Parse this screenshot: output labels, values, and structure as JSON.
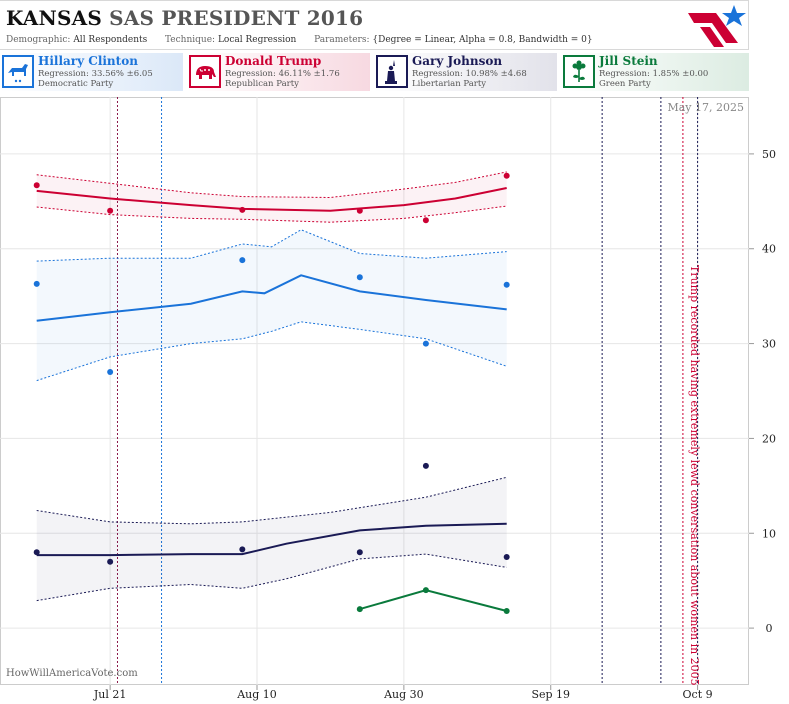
{
  "header": {
    "state": "KANSAS",
    "title_rest": "SAS PRESIDENT 2016",
    "demographic_label": "Demographic:",
    "demographic_value": "All Respondents",
    "technique_label": "Technique:",
    "technique_value": "Local Regression",
    "parameters_label": "Parameters:",
    "parameters_value": "{Degree = Linear, Alpha = 0.8, Bandwidth = 0}"
  },
  "candidates": [
    {
      "name": "Hillary Clinton",
      "regression": "Regression: 33.56% ±6.05",
      "party": "Democratic Party",
      "color": "#1a73d9",
      "icon": "donkey-icon"
    },
    {
      "name": "Donald Trump",
      "regression": "Regression: 46.11% ±1.76",
      "party": "Republican Party",
      "color": "#cc0033",
      "icon": "elephant-icon"
    },
    {
      "name": "Gary Johnson",
      "regression": "Regression: 10.98% ±4.68",
      "party": "Libertarian Party",
      "color": "#1a1a55",
      "icon": "statue-of-liberty-icon"
    },
    {
      "name": "Jill Stein",
      "regression": "Regression: 1.85% ±0.00",
      "party": "Green Party",
      "color": "#0a7a3c",
      "icon": "flower-icon"
    }
  ],
  "watermark": "HowWillAmericaVote.com",
  "date_stamp": "May 17, 2025",
  "chart_data": {
    "type": "line",
    "x_axis": {
      "type": "date",
      "range": [
        "2016-07-06",
        "2016-10-16"
      ],
      "ticks": [
        {
          "date": "2016-07-21",
          "label": "Jul 21"
        },
        {
          "date": "2016-08-10",
          "label": "Aug 10"
        },
        {
          "date": "2016-08-30",
          "label": "Aug 30"
        },
        {
          "date": "2016-09-19",
          "label": "Sep 19"
        },
        {
          "date": "2016-10-09",
          "label": "Oct 9"
        }
      ]
    },
    "y_axis": {
      "range": [
        -6,
        56
      ],
      "ticks": [
        0,
        10,
        20,
        30,
        40,
        50
      ],
      "side": "right"
    },
    "grid": true,
    "series": [
      {
        "name": "Donald Trump",
        "color": "#cc0033",
        "points": [
          [
            "2016-07-11",
            46.7
          ],
          [
            "2016-07-21",
            44.0
          ],
          [
            "2016-08-08",
            44.1
          ],
          [
            "2016-08-24",
            44.0
          ],
          [
            "2016-09-02",
            43.0
          ],
          [
            "2016-09-13",
            47.7
          ]
        ],
        "trend": [
          [
            "2016-07-11",
            46.1
          ],
          [
            "2016-07-21",
            45.3
          ],
          [
            "2016-08-01",
            44.6
          ],
          [
            "2016-08-08",
            44.2
          ],
          [
            "2016-08-20",
            44.0
          ],
          [
            "2016-08-30",
            44.6
          ],
          [
            "2016-09-06",
            45.3
          ],
          [
            "2016-09-13",
            46.4
          ]
        ],
        "band_upper": [
          [
            "2016-07-11",
            47.8
          ],
          [
            "2016-07-21",
            46.9
          ],
          [
            "2016-08-01",
            45.9
          ],
          [
            "2016-08-08",
            45.5
          ],
          [
            "2016-08-20",
            45.4
          ],
          [
            "2016-08-30",
            46.3
          ],
          [
            "2016-09-06",
            47.0
          ],
          [
            "2016-09-13",
            48.1
          ]
        ],
        "band_lower": [
          [
            "2016-07-11",
            44.4
          ],
          [
            "2016-07-21",
            43.6
          ],
          [
            "2016-08-01",
            43.2
          ],
          [
            "2016-08-08",
            43.1
          ],
          [
            "2016-08-20",
            42.8
          ],
          [
            "2016-08-30",
            43.2
          ],
          [
            "2016-09-06",
            43.8
          ],
          [
            "2016-09-13",
            44.5
          ]
        ]
      },
      {
        "name": "Hillary Clinton",
        "color": "#1a73d9",
        "points": [
          [
            "2016-07-11",
            36.3
          ],
          [
            "2016-07-21",
            27.0
          ],
          [
            "2016-08-08",
            38.8
          ],
          [
            "2016-08-24",
            37.0
          ],
          [
            "2016-09-02",
            30.0
          ],
          [
            "2016-09-13",
            36.2
          ]
        ],
        "trend": [
          [
            "2016-07-11",
            32.4
          ],
          [
            "2016-07-21",
            33.3
          ],
          [
            "2016-08-01",
            34.2
          ],
          [
            "2016-08-08",
            35.5
          ],
          [
            "2016-08-11",
            35.3
          ],
          [
            "2016-08-16",
            37.2
          ],
          [
            "2016-08-24",
            35.5
          ],
          [
            "2016-09-02",
            34.6
          ],
          [
            "2016-09-13",
            33.6
          ]
        ],
        "band_upper": [
          [
            "2016-07-11",
            38.7
          ],
          [
            "2016-07-21",
            39.0
          ],
          [
            "2016-08-01",
            39.0
          ],
          [
            "2016-08-08",
            40.5
          ],
          [
            "2016-08-12",
            40.2
          ],
          [
            "2016-08-16",
            42.0
          ],
          [
            "2016-08-24",
            39.5
          ],
          [
            "2016-09-02",
            39.0
          ],
          [
            "2016-09-13",
            39.7
          ]
        ],
        "band_lower": [
          [
            "2016-07-11",
            26.1
          ],
          [
            "2016-07-21",
            28.6
          ],
          [
            "2016-08-01",
            30.0
          ],
          [
            "2016-08-08",
            30.5
          ],
          [
            "2016-08-12",
            31.3
          ],
          [
            "2016-08-16",
            32.3
          ],
          [
            "2016-08-24",
            31.5
          ],
          [
            "2016-09-02",
            30.5
          ],
          [
            "2016-09-13",
            27.6
          ]
        ]
      },
      {
        "name": "Gary Johnson",
        "color": "#1a1a55",
        "points": [
          [
            "2016-07-11",
            8.0
          ],
          [
            "2016-07-21",
            7.0
          ],
          [
            "2016-08-08",
            8.3
          ],
          [
            "2016-08-24",
            8.0
          ],
          [
            "2016-09-02",
            17.1
          ],
          [
            "2016-09-13",
            7.5
          ]
        ],
        "trend": [
          [
            "2016-07-11",
            7.7
          ],
          [
            "2016-07-21",
            7.7
          ],
          [
            "2016-08-01",
            7.8
          ],
          [
            "2016-08-08",
            7.8
          ],
          [
            "2016-08-14",
            8.9
          ],
          [
            "2016-08-24",
            10.3
          ],
          [
            "2016-09-02",
            10.8
          ],
          [
            "2016-09-13",
            11.0
          ]
        ],
        "band_upper": [
          [
            "2016-07-11",
            12.4
          ],
          [
            "2016-07-21",
            11.2
          ],
          [
            "2016-08-01",
            11.0
          ],
          [
            "2016-08-08",
            11.2
          ],
          [
            "2016-08-20",
            12.2
          ],
          [
            "2016-09-02",
            13.8
          ],
          [
            "2016-09-13",
            15.9
          ]
        ],
        "band_lower": [
          [
            "2016-07-11",
            2.9
          ],
          [
            "2016-07-21",
            4.2
          ],
          [
            "2016-08-01",
            4.6
          ],
          [
            "2016-08-08",
            4.2
          ],
          [
            "2016-08-14",
            5.2
          ],
          [
            "2016-08-24",
            7.3
          ],
          [
            "2016-09-02",
            7.8
          ],
          [
            "2016-09-13",
            6.4
          ]
        ]
      },
      {
        "name": "Jill Stein",
        "color": "#0a7a3c",
        "points": [
          [
            "2016-08-24",
            2.0
          ],
          [
            "2016-09-02",
            4.0
          ],
          [
            "2016-09-13",
            1.8
          ]
        ],
        "trend": [
          [
            "2016-08-24",
            2.0
          ],
          [
            "2016-09-02",
            4.0
          ],
          [
            "2016-09-13",
            1.8
          ]
        ]
      }
    ],
    "event_lines": [
      {
        "date": "2016-07-22",
        "color": "#8b1a4a"
      },
      {
        "date": "2016-07-28",
        "color": "#1a73d9"
      },
      {
        "date": "2016-09-26",
        "color": "#1a1a55"
      },
      {
        "date": "2016-10-04",
        "color": "#1a1a55"
      },
      {
        "date": "2016-10-07",
        "color": "#cc0033"
      },
      {
        "date": "2016-10-09",
        "color": "#1a1a55"
      }
    ],
    "annotations": [
      {
        "text": "Trump recorded having extremely lewd conversation about women in 2005",
        "date": "2016-10-07",
        "color": "#cc0033"
      }
    ]
  }
}
